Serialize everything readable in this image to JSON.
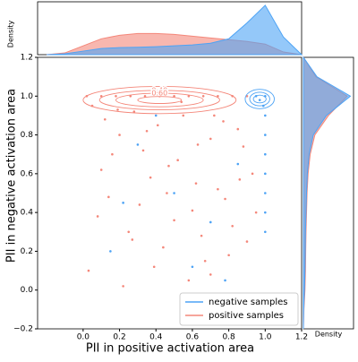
{
  "chart_data": {
    "type": "scatter",
    "xlabel": "PII in positive activation area",
    "ylabel": "PII in negative activation area",
    "xlim": [
      -0.25,
      1.2
    ],
    "ylim": [
      -0.2,
      1.2
    ],
    "xticks": [
      {
        "value": 0,
        "label": "0.0"
      },
      0.2,
      0.4,
      0.6,
      0.8,
      {
        "value": 1,
        "label": "1.0"
      },
      1.2
    ],
    "yticks": [
      {
        "value": -0.2,
        "label": "−0.2"
      },
      {
        "value": 0,
        "label": "0.0"
      },
      0.2,
      0.4,
      0.6,
      0.8,
      {
        "value": 1,
        "label": "1.0"
      },
      1.2
    ],
    "legend": "lower right",
    "series": [
      {
        "name": "negative samples",
        "color": "#4da3f5",
        "x": [
          1,
          1,
          1,
          1,
          1,
          1,
          1,
          1,
          0.97,
          0.95,
          0.99,
          0.3,
          0.5,
          0.7,
          0.15,
          0.85,
          0.6,
          0.4,
          0.22,
          0.78
        ],
        "y": [
          0.3,
          0.4,
          0.5,
          0.6,
          0.7,
          0.8,
          0.9,
          1.0,
          0.98,
          1.0,
          0.95,
          0.75,
          0.5,
          0.35,
          0.2,
          0.65,
          0.12,
          0.9,
          0.45,
          0.05
        ]
      },
      {
        "name": "positive samples",
        "color": "#f4877a",
        "x": [
          0.05,
          0.12,
          0.2,
          0.28,
          0.33,
          0.41,
          0.47,
          0.55,
          0.62,
          0.7,
          0.78,
          0.85,
          0.93,
          0.08,
          0.16,
          0.25,
          0.37,
          0.44,
          0.52,
          0.6,
          0.67,
          0.74,
          0.82,
          0.9,
          0.03,
          0.14,
          0.22,
          0.31,
          0.39,
          0.5,
          0.58,
          0.65,
          0.72,
          0.8,
          0.88,
          0.95,
          0.1,
          0.19,
          0.27,
          0.35,
          0.46,
          0.54,
          0.63,
          0.7,
          0.77,
          0.86,
          0.02,
          0.1,
          0.18,
          0.26,
          0.34,
          0.42,
          0.5,
          0.58,
          0.66,
          0.74,
          0.82,
          0.9
        ],
        "y": [
          0.95,
          0.88,
          0.8,
          0.92,
          0.72,
          0.85,
          0.64,
          0.9,
          0.55,
          0.78,
          0.47,
          0.83,
          0.6,
          0.38,
          0.7,
          0.3,
          0.58,
          0.22,
          0.67,
          0.41,
          0.15,
          0.52,
          0.33,
          0.25,
          0.1,
          0.48,
          0.02,
          0.44,
          0.12,
          0.36,
          0.05,
          0.28,
          0.9,
          0.18,
          0.74,
          0.4,
          0.62,
          0.93,
          0.26,
          0.82,
          0.5,
          0.97,
          0.75,
          0.08,
          0.87,
          0.57,
          1,
          1,
          1,
          1,
          1,
          1,
          1,
          1,
          1,
          1,
          1,
          1
        ]
      }
    ],
    "contours": [
      {
        "series": 1,
        "cx": 0.42,
        "cy": 0.98,
        "rx": 0.42,
        "ry": 0.07
      },
      {
        "series": 1,
        "cx": 0.42,
        "cy": 0.98,
        "rx": 0.33,
        "ry": 0.05,
        "level": 0.4,
        "label": "0.40"
      },
      {
        "series": 1,
        "cx": 0.42,
        "cy": 0.98,
        "rx": 0.24,
        "ry": 0.035,
        "level": 0.6,
        "label": "0.60"
      },
      {
        "series": 1,
        "cx": 0.42,
        "cy": 0.98,
        "rx": 0.12,
        "ry": 0.018
      },
      {
        "series": 0,
        "cx": 0.97,
        "cy": 0.985,
        "rx": 0.08,
        "ry": 0.05
      },
      {
        "series": 0,
        "cx": 0.97,
        "cy": 0.985,
        "rx": 0.055,
        "ry": 0.035
      },
      {
        "series": 0,
        "cx": 0.97,
        "cy": 0.985,
        "rx": 0.035,
        "ry": 0.02
      }
    ],
    "marginal_x": {
      "ylabel": "Density",
      "ylim": [
        0,
        3
      ],
      "x": [
        -0.2,
        -0.1,
        0,
        0.1,
        0.2,
        0.3,
        0.4,
        0.5,
        0.6,
        0.7,
        0.8,
        0.9,
        1.0,
        1.1,
        1.2
      ],
      "densities": [
        [
          0,
          0.05,
          0.2,
          0.35,
          0.4,
          0.42,
          0.45,
          0.5,
          0.55,
          0.65,
          0.9,
          1.8,
          2.8,
          1.0,
          0
        ],
        [
          0,
          0.1,
          0.5,
          0.9,
          1.1,
          1.2,
          1.2,
          1.15,
          1.05,
          0.95,
          0.85,
          0.75,
          0.6,
          0.15,
          0
        ]
      ]
    },
    "marginal_y": {
      "xlabel": "Density",
      "xlim": [
        0,
        4.8
      ],
      "y": [
        -0.2,
        -0.1,
        0,
        0.1,
        0.2,
        0.3,
        0.4,
        0.5,
        0.6,
        0.7,
        0.8,
        0.9,
        1.0,
        1.1,
        1.2
      ],
      "densities": [
        [
          0,
          0.03,
          0.1,
          0.15,
          0.18,
          0.2,
          0.25,
          0.3,
          0.38,
          0.55,
          0.95,
          2.2,
          4.5,
          1.3,
          0
        ],
        [
          0,
          0.05,
          0.15,
          0.2,
          0.22,
          0.25,
          0.3,
          0.35,
          0.45,
          0.65,
          1.1,
          2.4,
          4.2,
          1.2,
          0
        ]
      ]
    }
  }
}
